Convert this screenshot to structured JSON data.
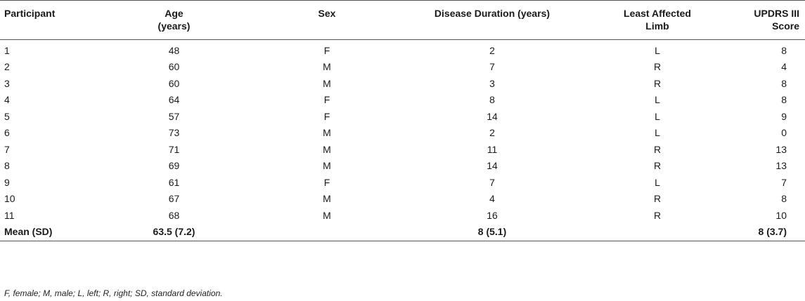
{
  "table": {
    "headers": [
      {
        "line1": "Participant",
        "line2": ""
      },
      {
        "line1": "Age",
        "line2": "(years)"
      },
      {
        "line1": "Sex",
        "line2": ""
      },
      {
        "line1": "Disease Duration (years)",
        "line2": ""
      },
      {
        "line1": "Least Affected",
        "line2": "Limb"
      },
      {
        "line1": "UPDRS III Score",
        "line2": ""
      }
    ],
    "rows": [
      [
        "1",
        "48",
        "F",
        "2",
        "L",
        "8"
      ],
      [
        "2",
        "60",
        "M",
        "7",
        "R",
        "4"
      ],
      [
        "3",
        "60",
        "M",
        "3",
        "R",
        "8"
      ],
      [
        "4",
        "64",
        "F",
        "8",
        "L",
        "8"
      ],
      [
        "5",
        "57",
        "F",
        "14",
        "L",
        "9"
      ],
      [
        "6",
        "73",
        "M",
        "2",
        "L",
        "0"
      ],
      [
        "7",
        "71",
        "M",
        "11",
        "R",
        "13"
      ],
      [
        "8",
        "69",
        "M",
        "14",
        "R",
        "13"
      ],
      [
        "9",
        "61",
        "F",
        "7",
        "L",
        "7"
      ],
      [
        "10",
        "67",
        "M",
        "4",
        "R",
        "8"
      ],
      [
        "11",
        "68",
        "M",
        "16",
        "R",
        "10"
      ]
    ],
    "mean_row": [
      "Mean (SD)",
      "63.5 (7.2)",
      "",
      "8 (5.1)",
      "",
      "8 (3.7)"
    ]
  },
  "footnote": "F, female; M, male; L, left; R, right; SD, standard deviation."
}
